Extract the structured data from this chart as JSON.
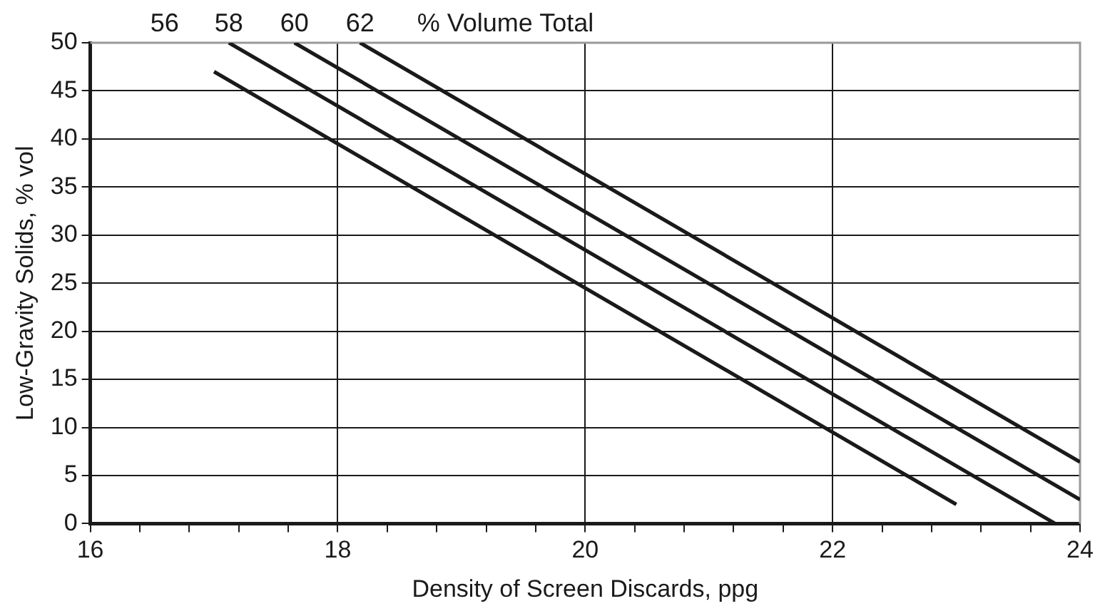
{
  "chart_data": {
    "type": "line",
    "xlabel": "Density of Screen Discards, ppg",
    "ylabel": "Low-Gravity Solids, % vol",
    "series": [
      {
        "name": "56",
        "color": "#1a1a1a",
        "x": [
          17.0,
          23.0
        ],
        "values": [
          47,
          2
        ]
      },
      {
        "name": "58",
        "color": "#1a1a1a",
        "x": [
          17.12,
          23.8
        ],
        "values": [
          50,
          0
        ]
      },
      {
        "name": "60",
        "color": "#1a1a1a",
        "x": [
          17.65,
          24
        ],
        "values": [
          50,
          2.5
        ]
      },
      {
        "name": "62",
        "color": "#1a1a1a",
        "x": [
          18.18,
          24
        ],
        "values": [
          50,
          6.4
        ]
      }
    ],
    "annotations": [
      "% Volume Total"
    ],
    "xlim": [
      16,
      24
    ],
    "xticks": [
      16,
      {
        "value": 16.4,
        "label": null
      },
      {
        "value": 16.8,
        "label": null
      },
      {
        "value": 17.2,
        "label": null
      },
      {
        "value": 17.6,
        "label": null
      },
      18,
      {
        "value": 18.4,
        "label": null
      },
      {
        "value": 18.8,
        "label": null
      },
      {
        "value": 19.2,
        "label": null
      },
      {
        "value": 19.6,
        "label": null
      },
      20,
      {
        "value": 20.4,
        "label": null
      },
      {
        "value": 20.8,
        "label": null
      },
      {
        "value": 21.2,
        "label": null
      },
      {
        "value": 21.6,
        "label": null
      },
      22,
      {
        "value": 22.4,
        "label": null
      },
      {
        "value": 22.8,
        "label": null
      },
      {
        "value": 23.2,
        "label": null
      },
      {
        "value": 23.6,
        "label": null
      },
      24
    ],
    "ylim": [
      0,
      50
    ],
    "yticks": [
      0,
      5,
      10,
      15,
      20,
      25,
      30,
      35,
      40,
      45,
      50
    ],
    "grid": true,
    "legend": false,
    "marker": "none",
    "line_style": "solid"
  }
}
